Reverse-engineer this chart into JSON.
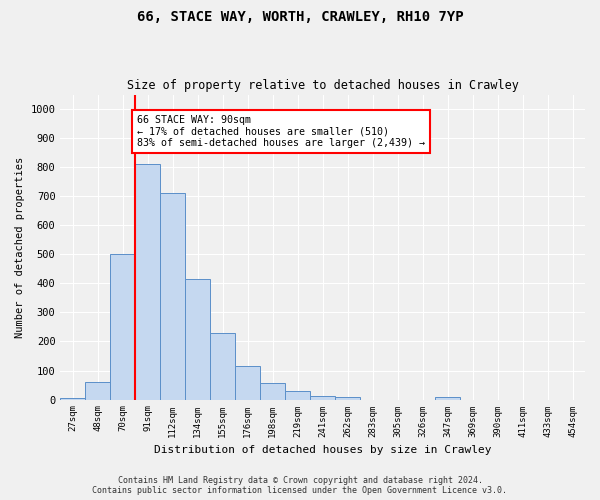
{
  "title1": "66, STACE WAY, WORTH, CRAWLEY, RH10 7YP",
  "title2": "Size of property relative to detached houses in Crawley",
  "xlabel": "Distribution of detached houses by size in Crawley",
  "ylabel": "Number of detached properties",
  "categories": [
    "27sqm",
    "48sqm",
    "70sqm",
    "91sqm",
    "112sqm",
    "134sqm",
    "155sqm",
    "176sqm",
    "198sqm",
    "219sqm",
    "241sqm",
    "262sqm",
    "283sqm",
    "305sqm",
    "326sqm",
    "347sqm",
    "369sqm",
    "390sqm",
    "411sqm",
    "433sqm",
    "454sqm"
  ],
  "values": [
    5,
    60,
    500,
    810,
    710,
    415,
    230,
    115,
    57,
    28,
    13,
    8,
    0,
    0,
    0,
    8,
    0,
    0,
    0,
    0,
    0
  ],
  "bar_color": "#c5d8f0",
  "bar_edge_color": "#5b8fc9",
  "vline_color": "red",
  "vline_index": 2.5,
  "annotation_text": "66 STACE WAY: 90sqm\n← 17% of detached houses are smaller (510)\n83% of semi-detached houses are larger (2,439) →",
  "annotation_box_color": "white",
  "annotation_box_edge": "red",
  "ylim": [
    0,
    1050
  ],
  "yticks": [
    0,
    100,
    200,
    300,
    400,
    500,
    600,
    700,
    800,
    900,
    1000
  ],
  "footer1": "Contains HM Land Registry data © Crown copyright and database right 2024.",
  "footer2": "Contains public sector information licensed under the Open Government Licence v3.0.",
  "bg_color": "#f0f0f0",
  "grid_color": "#ffffff",
  "plot_bg": "#e8e8e8"
}
